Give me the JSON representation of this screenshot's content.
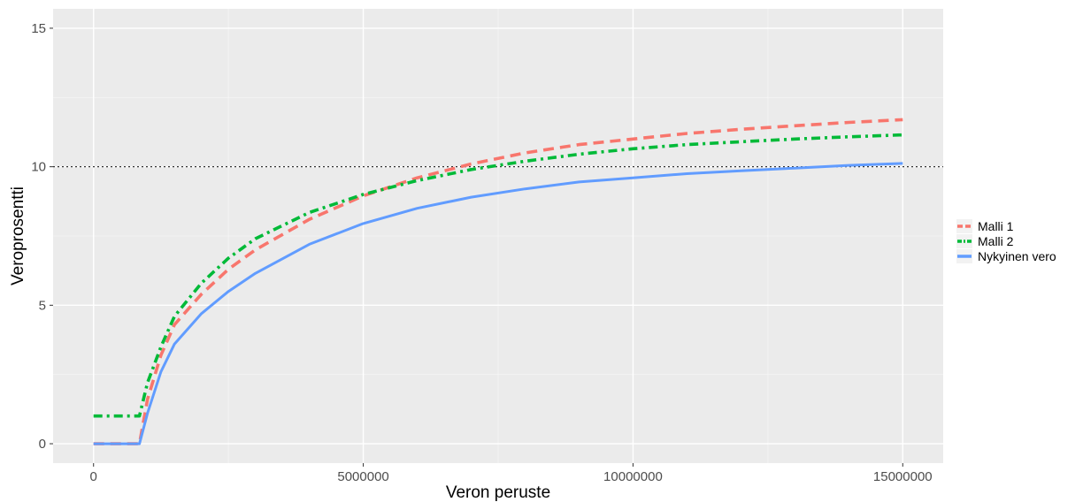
{
  "chart_data": {
    "type": "line",
    "xlabel": "Veron peruste",
    "ylabel": "Veroprosentti",
    "xlim": [
      -750000,
      15750000
    ],
    "ylim": [
      -0.7,
      15.7
    ],
    "x_ticks": [
      0,
      5000000,
      10000000,
      15000000
    ],
    "x_tick_labels": [
      "0",
      "5000000",
      "10000000",
      "15000000"
    ],
    "y_ticks": [
      0,
      5,
      10,
      15
    ],
    "y_tick_labels": [
      "0",
      "5",
      "10",
      "15"
    ],
    "grid": true,
    "reference_line": {
      "y": 10,
      "style": "dotted",
      "color": "#333333"
    },
    "legend": {
      "position": "right"
    },
    "series": [
      {
        "name": "Malli 1",
        "color": "#F8766D",
        "dash": "dashed",
        "points": [
          [
            0,
            0
          ],
          [
            850000,
            0
          ],
          [
            1000000,
            1.6
          ],
          [
            1250000,
            3.2
          ],
          [
            1500000,
            4.3
          ],
          [
            2000000,
            5.4
          ],
          [
            2500000,
            6.3
          ],
          [
            3000000,
            7.0
          ],
          [
            4000000,
            8.1
          ],
          [
            5000000,
            8.95
          ],
          [
            6000000,
            9.6
          ],
          [
            7000000,
            10.1
          ],
          [
            8000000,
            10.5
          ],
          [
            9000000,
            10.8
          ],
          [
            10000000,
            11.0
          ],
          [
            11000000,
            11.2
          ],
          [
            12000000,
            11.35
          ],
          [
            13000000,
            11.48
          ],
          [
            14000000,
            11.6
          ],
          [
            15000000,
            11.7
          ]
        ]
      },
      {
        "name": "Malli 2",
        "color": "#00BA38",
        "dash": "dotdash",
        "points": [
          [
            0,
            1.0
          ],
          [
            850000,
            1.0
          ],
          [
            1000000,
            2.2
          ],
          [
            1250000,
            3.5
          ],
          [
            1500000,
            4.6
          ],
          [
            2000000,
            5.8
          ],
          [
            2500000,
            6.7
          ],
          [
            3000000,
            7.4
          ],
          [
            4000000,
            8.35
          ],
          [
            5000000,
            9.0
          ],
          [
            6000000,
            9.5
          ],
          [
            7000000,
            9.9
          ],
          [
            8000000,
            10.2
          ],
          [
            9000000,
            10.45
          ],
          [
            10000000,
            10.65
          ],
          [
            11000000,
            10.8
          ],
          [
            12000000,
            10.9
          ],
          [
            13000000,
            11.0
          ],
          [
            14000000,
            11.08
          ],
          [
            15000000,
            11.15
          ]
        ]
      },
      {
        "name": "Nykyinen vero",
        "color": "#619CFF",
        "dash": "solid",
        "points": [
          [
            0,
            0
          ],
          [
            850000,
            0
          ],
          [
            1000000,
            1.1
          ],
          [
            1250000,
            2.6
          ],
          [
            1500000,
            3.6
          ],
          [
            2000000,
            4.7
          ],
          [
            2500000,
            5.5
          ],
          [
            3000000,
            6.15
          ],
          [
            4000000,
            7.2
          ],
          [
            5000000,
            7.95
          ],
          [
            6000000,
            8.5
          ],
          [
            7000000,
            8.9
          ],
          [
            8000000,
            9.2
          ],
          [
            9000000,
            9.45
          ],
          [
            10000000,
            9.6
          ],
          [
            11000000,
            9.75
          ],
          [
            12000000,
            9.85
          ],
          [
            13000000,
            9.95
          ],
          [
            14000000,
            10.05
          ],
          [
            15000000,
            10.12
          ]
        ]
      }
    ]
  }
}
